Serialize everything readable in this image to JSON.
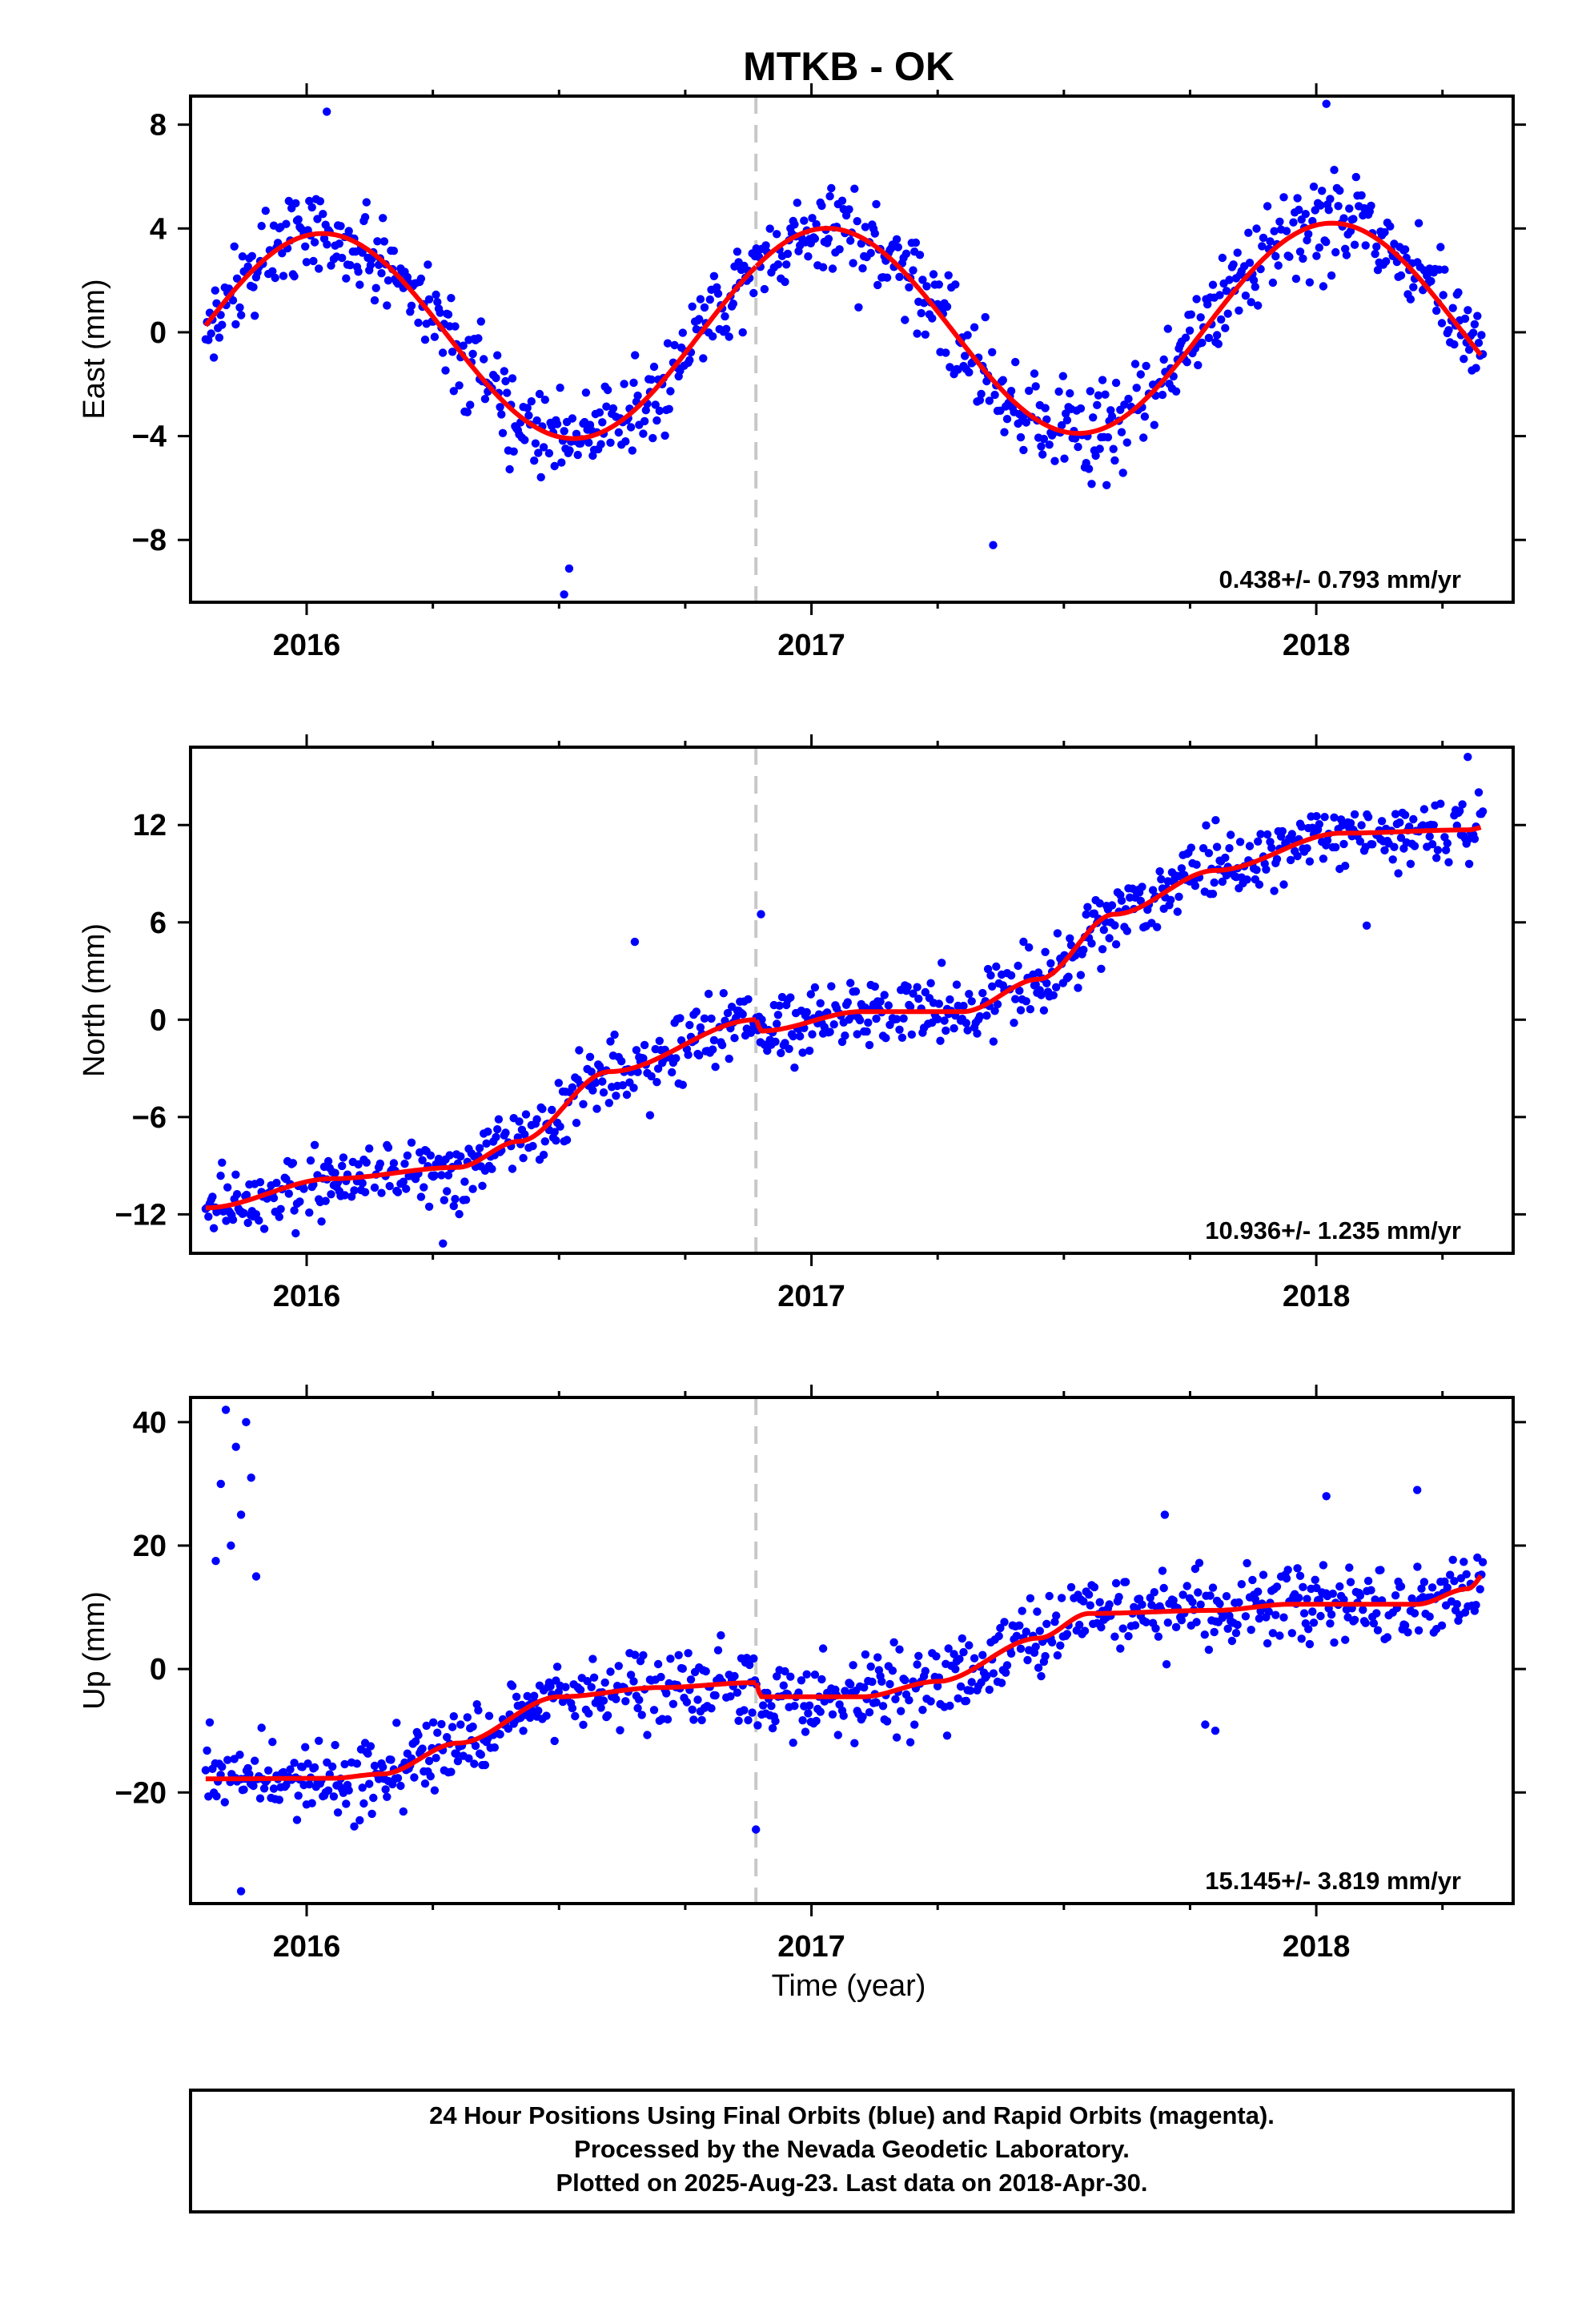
{
  "chart_data": {
    "title": "MTKB - OK",
    "xlabel": "Time (year)",
    "xlim": [
      2015.77,
      2018.39
    ],
    "x_ticks": [
      2016,
      2017,
      2018
    ],
    "x_minor_ticks": [
      2016.25,
      2016.5,
      2016.75,
      2017.25,
      2017.5,
      2017.75,
      2018.25
    ],
    "offset_marker_x": 2016.89,
    "colors": {
      "final_orbit_points": "#0000ff",
      "model_fit": "#ff0000",
      "offset_line": "#c8c8c8"
    },
    "panels": [
      {
        "type": "scatter",
        "ylabel": "East (mm)",
        "ylim": [
          -10.4,
          9.1
        ],
        "y_ticks": [
          -8,
          -4,
          0,
          4,
          8
        ],
        "y_tick_labels": [
          "−8",
          "−4",
          "0",
          "4",
          "8"
        ],
        "rate": "0.438+/- 0.793 mm/yr",
        "fit": {
          "amp": 4.0,
          "phase_peak": 2017.03,
          "trend": 0.2,
          "noise": 1.2
        },
        "outliers": [
          [
            2016.04,
            8.5
          ],
          [
            2016.51,
            -10.1
          ],
          [
            2016.52,
            -9.1
          ],
          [
            2017.36,
            -8.2
          ],
          [
            2018.02,
            8.8
          ]
        ],
        "series": [
          {
            "name": "Final Orbits",
            "color": "#0000ff"
          },
          {
            "name": "Rapid Orbits",
            "color": "#ff00ff"
          }
        ]
      },
      {
        "type": "scatter",
        "ylabel": "North (mm)",
        "ylim": [
          -14.4,
          16.8
        ],
        "y_ticks": [
          -12,
          -6,
          0,
          6,
          12
        ],
        "y_tick_labels": [
          "−12",
          "−6",
          "0",
          "6",
          "12"
        ],
        "rate": "10.936+/- 1.235 mm/yr",
        "fit": {
          "knots": [
            [
              2015.8,
              -11.6
            ],
            [
              2016.05,
              -9.8
            ],
            [
              2016.3,
              -9.1
            ],
            [
              2016.42,
              -7.5
            ],
            [
              2016.6,
              -3.2
            ],
            [
              2016.89,
              0.0
            ],
            [
              2016.9,
              -0.7
            ],
            [
              2017.1,
              0.5
            ],
            [
              2017.3,
              0.5
            ],
            [
              2017.45,
              2.5
            ],
            [
              2017.6,
              6.5
            ],
            [
              2017.8,
              9.2
            ],
            [
              2018.05,
              11.5
            ],
            [
              2018.3,
              11.7
            ],
            [
              2018.35,
              12.0
            ]
          ],
          "noise": 1.5
        },
        "outliers": [
          [
            2016.65,
            4.8
          ],
          [
            2016.9,
            6.5
          ],
          [
            2016.27,
            -13.8
          ],
          [
            2018.1,
            5.8
          ],
          [
            2018.3,
            16.2
          ]
        ],
        "series": [
          {
            "name": "Final Orbits",
            "color": "#0000ff"
          },
          {
            "name": "Rapid Orbits",
            "color": "#ff00ff"
          }
        ]
      },
      {
        "type": "scatter",
        "ylabel": "Up (mm)",
        "ylim": [
          -38,
          44
        ],
        "y_ticks": [
          -20,
          0,
          20,
          40
        ],
        "y_tick_labels": [
          "−20",
          "0",
          "20",
          "40"
        ],
        "rate": "15.145+/- 3.819 mm/yr",
        "fit": {
          "knots": [
            [
              2015.8,
              -17.8
            ],
            [
              2016.05,
              -17.7
            ],
            [
              2016.15,
              -17.0
            ],
            [
              2016.3,
              -12.0
            ],
            [
              2016.5,
              -4.5
            ],
            [
              2016.7,
              -3.0
            ],
            [
              2016.89,
              -2.2
            ],
            [
              2016.9,
              -4.5
            ],
            [
              2017.1,
              -4.5
            ],
            [
              2017.25,
              -2.0
            ],
            [
              2017.45,
              5.0
            ],
            [
              2017.55,
              9.0
            ],
            [
              2017.8,
              9.5
            ],
            [
              2017.95,
              10.5
            ],
            [
              2018.2,
              10.5
            ],
            [
              2018.3,
              13.0
            ],
            [
              2018.35,
              17.0
            ]
          ],
          "noise": 4.5
        },
        "outliers": [
          [
            2015.82,
            17.5
          ],
          [
            2015.83,
            30.0
          ],
          [
            2015.84,
            42.0
          ],
          [
            2015.86,
            36.0
          ],
          [
            2015.87,
            25.0
          ],
          [
            2015.88,
            40.0
          ],
          [
            2015.85,
            20.0
          ],
          [
            2015.89,
            31.0
          ],
          [
            2015.9,
            15.0
          ],
          [
            2016.89,
            -26.0
          ],
          [
            2017.7,
            25.0
          ],
          [
            2017.78,
            -9.0
          ],
          [
            2017.8,
            -10.0
          ],
          [
            2018.02,
            28.0
          ],
          [
            2018.2,
            29.0
          ],
          [
            2015.87,
            -36.0
          ]
        ],
        "series": [
          {
            "name": "Final Orbits",
            "color": "#0000ff"
          },
          {
            "name": "Rapid Orbits",
            "color": "#ff00ff"
          }
        ]
      }
    ]
  },
  "footer": {
    "line1": "24 Hour Positions Using Final Orbits (blue) and Rapid Orbits (magenta).",
    "line2": "Processed by the Nevada Geodetic Laboratory.",
    "line3": "Plotted on 2025-Aug-23. Last data on 2018-Apr-30."
  }
}
